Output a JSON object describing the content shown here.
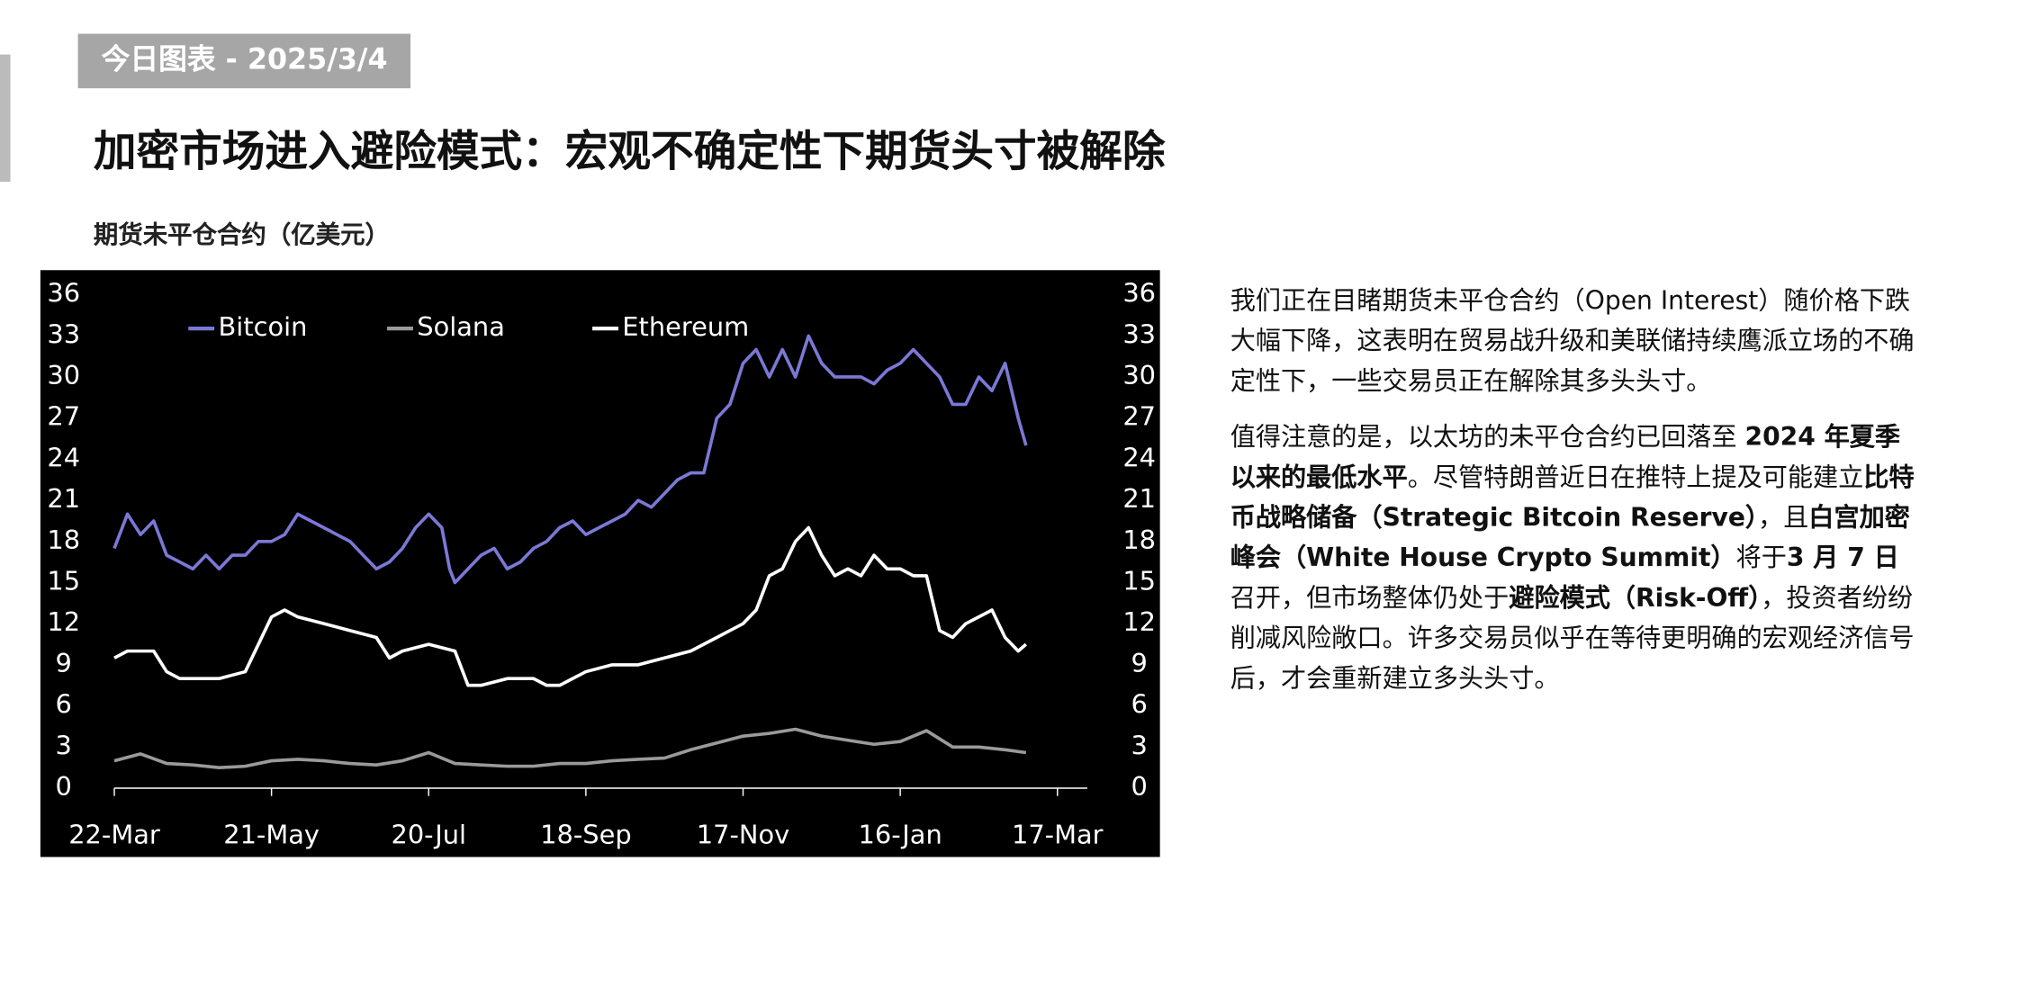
{
  "header": {
    "tag": "今日图表 - 2025/3/4",
    "title": "加密市场进入避险模式：宏观不确定性下期货头寸被解除",
    "subtitle": "期货未平仓合约（亿美元）"
  },
  "chart_data": {
    "type": "line",
    "legend": "top-left",
    "xlim": [
      0,
      360
    ],
    "xticks": [
      {
        "value": 0,
        "label": "22-Mar"
      },
      {
        "value": 60,
        "label": "21-May"
      },
      {
        "value": 120,
        "label": "20-Jul"
      },
      {
        "value": 180,
        "label": "18-Sep"
      },
      {
        "value": 240,
        "label": "17-Nov"
      },
      {
        "value": 300,
        "label": "16-Jan"
      },
      {
        "value": 360,
        "label": "17-Mar"
      }
    ],
    "ylim": [
      0,
      36
    ],
    "yticks": [
      0,
      3,
      6,
      9,
      12,
      15,
      18,
      21,
      24,
      27,
      30,
      33,
      36
    ],
    "series": [
      {
        "name": "Bitcoin",
        "color": "#7b78d6",
        "x": [
          0,
          5,
          10,
          15,
          20,
          25,
          30,
          35,
          40,
          45,
          50,
          55,
          60,
          65,
          70,
          75,
          80,
          85,
          90,
          95,
          100,
          105,
          110,
          115,
          120,
          125,
          128,
          130,
          135,
          140,
          145,
          150,
          155,
          160,
          165,
          170,
          175,
          180,
          185,
          190,
          195,
          200,
          205,
          210,
          215,
          220,
          225,
          230,
          235,
          240,
          245,
          250,
          255,
          260,
          265,
          270,
          275,
          280,
          285,
          290,
          295,
          300,
          305,
          310,
          315,
          320,
          325,
          330,
          335,
          340,
          345,
          348
        ],
        "values": [
          17.5,
          20,
          18.5,
          19.5,
          17,
          16.5,
          16,
          17,
          16,
          17,
          17,
          18,
          18,
          18.5,
          20,
          19.5,
          19,
          18.5,
          18,
          17,
          16,
          16.5,
          17.5,
          19,
          20,
          19,
          16,
          15,
          16,
          17,
          17.5,
          16,
          16.5,
          17.5,
          18,
          19,
          19.5,
          18.5,
          19,
          19.5,
          20,
          21,
          20.5,
          21.5,
          22.5,
          23,
          23,
          27,
          28,
          31,
          32,
          30,
          32,
          30,
          33,
          31,
          30,
          30,
          30,
          29.5,
          30.5,
          31,
          32,
          31,
          30,
          28,
          28,
          30,
          29,
          31,
          27,
          25
        ]
      },
      {
        "name": "Solana",
        "color": "#9a9a9a",
        "x": [
          0,
          10,
          20,
          30,
          40,
          50,
          60,
          70,
          80,
          90,
          100,
          110,
          120,
          130,
          140,
          150,
          160,
          170,
          180,
          190,
          200,
          210,
          220,
          230,
          240,
          250,
          260,
          270,
          280,
          290,
          300,
          310,
          315,
          320,
          330,
          340,
          348
        ],
        "values": [
          2,
          2.5,
          1.8,
          1.7,
          1.5,
          1.6,
          2,
          2.1,
          2,
          1.8,
          1.7,
          2,
          2.6,
          1.8,
          1.7,
          1.6,
          1.6,
          1.8,
          1.8,
          2,
          2.1,
          2.2,
          2.8,
          3.3,
          3.8,
          4,
          4.3,
          3.8,
          3.5,
          3.2,
          3.4,
          4.2,
          3.6,
          3,
          3,
          2.8,
          2.6
        ]
      },
      {
        "name": "Ethereum",
        "color": "#ffffff",
        "x": [
          0,
          5,
          10,
          15,
          20,
          25,
          30,
          40,
          50,
          60,
          65,
          70,
          80,
          90,
          100,
          105,
          110,
          120,
          130,
          135,
          140,
          150,
          160,
          165,
          170,
          180,
          190,
          200,
          210,
          220,
          230,
          235,
          240,
          245,
          250,
          255,
          260,
          265,
          270,
          275,
          280,
          285,
          290,
          295,
          300,
          305,
          310,
          315,
          320,
          325,
          330,
          335,
          340,
          345,
          348
        ],
        "values": [
          9.5,
          10,
          10,
          10,
          8.5,
          8,
          8,
          8,
          8.5,
          12.5,
          13,
          12.5,
          12,
          11.5,
          11,
          9.5,
          10,
          10.5,
          10,
          7.5,
          7.5,
          8,
          8,
          7.5,
          7.5,
          8.5,
          9,
          9,
          9.5,
          10,
          11,
          11.5,
          12,
          13,
          15.5,
          16,
          18,
          19,
          17,
          15.5,
          16,
          15.5,
          17,
          16,
          16,
          15.5,
          15.5,
          11.5,
          11,
          12,
          12.5,
          13,
          11,
          10,
          10.5
        ]
      }
    ]
  },
  "text": {
    "paragraphs": [
      [
        {
          "text": "我们正在目睹期货未平仓合约（Open Interest）随价格下跌大幅下降，这表明在贸易战升级和美联储持续鹰派立场的不确定性下，一些交易员正在解除其多头头寸。",
          "bold": false
        }
      ],
      [
        {
          "text": "值得注意的是，以太坊的未平仓合约已回落至 ",
          "bold": false
        },
        {
          "text": "2024 年夏季以来的最低水平",
          "bold": true
        },
        {
          "text": "。尽管特朗普近日在推特上提及可能建立",
          "bold": false
        },
        {
          "text": "比特币战略储备（Strategic Bitcoin Reserve）",
          "bold": true
        },
        {
          "text": "，且",
          "bold": false
        },
        {
          "text": "白宫加密峰会（White House Crypto Summit）",
          "bold": true
        },
        {
          "text": "将于",
          "bold": false
        },
        {
          "text": "3 月 7 日",
          "bold": true
        },
        {
          "text": "召开，但市场整体仍处于",
          "bold": false
        },
        {
          "text": "避险模式（Risk-Off）",
          "bold": true
        },
        {
          "text": "，投资者纷纷削减风险敞口。许多交易员似乎在等待更明确的宏观经济信号后，才会重新建立多头头寸。",
          "bold": false
        }
      ]
    ]
  }
}
